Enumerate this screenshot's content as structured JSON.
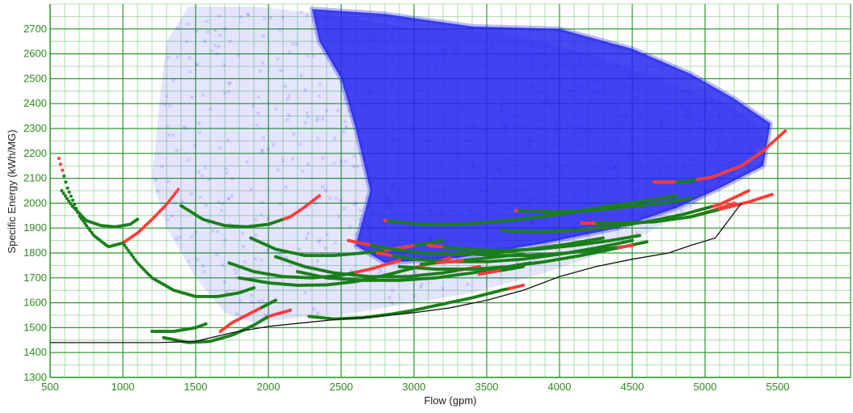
{
  "chart_data": {
    "type": "scatter",
    "title": "",
    "xlabel": "Flow (gpm)",
    "ylabel": "Specific Energy (kWh/MG)",
    "xlim": [
      500,
      6000
    ],
    "ylim": [
      1300,
      2800
    ],
    "x_ticks": [
      500,
      1000,
      1500,
      2000,
      2500,
      3000,
      3500,
      4000,
      4500,
      5000,
      5500
    ],
    "y_ticks": [
      1300,
      1400,
      1500,
      1600,
      1700,
      1800,
      1900,
      2000,
      2100,
      2200,
      2300,
      2400,
      2500,
      2600,
      2700
    ],
    "x_minor_step": 100,
    "y_minor_step": 50,
    "grid": true,
    "colors": {
      "grid_major": "#2e9a2e",
      "grid_minor": "#9bd49b",
      "tick_label": "#2e8b1e",
      "cloud": "#1f1ff0",
      "curve_feasible": "#1a7f1a",
      "curve_infeasible": "#ff3b3b",
      "envelope": "#111111"
    },
    "cloud_outline": [
      [
        1250,
        2400
      ],
      [
        1300,
        2650
      ],
      [
        1450,
        2790
      ],
      [
        1900,
        2790
      ],
      [
        2400,
        2760
      ],
      [
        3000,
        2700
      ],
      [
        3600,
        2690
      ],
      [
        4200,
        2600
      ],
      [
        4600,
        2520
      ],
      [
        4900,
        2450
      ],
      [
        5150,
        2400
      ],
      [
        5350,
        2320
      ],
      [
        5400,
        2250
      ],
      [
        5250,
        2150
      ],
      [
        5050,
        2050
      ],
      [
        4900,
        1980
      ],
      [
        4600,
        1880
      ],
      [
        4300,
        1800
      ],
      [
        3900,
        1720
      ],
      [
        3400,
        1640
      ],
      [
        3000,
        1600
      ],
      [
        2600,
        1560
      ],
      [
        2200,
        1540
      ],
      [
        1900,
        1520
      ],
      [
        1700,
        1560
      ],
      [
        1500,
        1700
      ],
      [
        1300,
        1900
      ],
      [
        1200,
        2100
      ]
    ],
    "cloud_core_outline": [
      [
        2300,
        2780
      ],
      [
        2800,
        2760
      ],
      [
        3400,
        2710
      ],
      [
        4000,
        2700
      ],
      [
        4500,
        2620
      ],
      [
        4900,
        2520
      ],
      [
        5200,
        2420
      ],
      [
        5450,
        2320
      ],
      [
        5400,
        2150
      ],
      [
        5100,
        2060
      ],
      [
        4800,
        1980
      ],
      [
        4400,
        1900
      ],
      [
        3900,
        1840
      ],
      [
        3300,
        1780
      ],
      [
        2800,
        1760
      ],
      [
        2600,
        1830
      ],
      [
        2700,
        2050
      ],
      [
        2600,
        2300
      ],
      [
        2500,
        2500
      ],
      [
        2350,
        2650
      ]
    ],
    "curves": [
      {
        "x": [
          560,
          620,
          700,
          800,
          900,
          1000
        ],
        "y": [
          2180,
          2060,
          1950,
          1870,
          1825,
          1840
        ],
        "infeasible_x": [
          [
            560,
            590
          ]
        ]
      },
      {
        "x": [
          580,
          650,
          750,
          850,
          950,
          1050,
          1100
        ],
        "y": [
          2050,
          1990,
          1930,
          1910,
          1905,
          1915,
          1935
        ],
        "infeasible_x": []
      },
      {
        "x": [
          1000,
          1100,
          1200,
          1300,
          1380
        ],
        "y": [
          1840,
          1880,
          1935,
          1995,
          2055
        ],
        "infeasible_x": [
          [
            1000,
            1380
          ]
        ]
      },
      {
        "x": [
          1000,
          1100,
          1200,
          1350,
          1500,
          1650,
          1800,
          1900
        ],
        "y": [
          1840,
          1760,
          1700,
          1650,
          1625,
          1625,
          1640,
          1660
        ],
        "infeasible_x": []
      },
      {
        "x": [
          1400,
          1550,
          1700,
          1850,
          2000,
          2150,
          2250,
          2350
        ],
        "y": [
          1990,
          1935,
          1910,
          1905,
          1915,
          1945,
          1985,
          2030
        ],
        "infeasible_x": [
          [
            2100,
            2350
          ]
        ]
      },
      {
        "x": [
          1670,
          1750,
          1850,
          1950,
          2050
        ],
        "y": [
          1485,
          1520,
          1550,
          1580,
          1610
        ],
        "infeasible_x": [
          [
            1570,
            1950
          ]
        ]
      },
      {
        "x": [
          1200,
          1350,
          1500,
          1570
        ],
        "y": [
          1485,
          1485,
          1500,
          1515
        ],
        "infeasible_x": []
      },
      {
        "x": [
          1280,
          1450,
          1600,
          1750,
          1900,
          2000,
          2150
        ],
        "y": [
          1460,
          1440,
          1445,
          1470,
          1510,
          1545,
          1570
        ],
        "infeasible_x": [
          [
            2000,
            2150
          ]
        ]
      },
      {
        "x": [
          2280,
          2450,
          2650,
          2850,
          3000,
          3200,
          3400,
          3600,
          3750
        ],
        "y": [
          1545,
          1535,
          1540,
          1555,
          1570,
          1595,
          1620,
          1650,
          1670
        ],
        "infeasible_x": [
          [
            3650,
            3750
          ]
        ]
      },
      {
        "x": [
          1730,
          1900,
          2100,
          2300,
          2500,
          2700,
          2900
        ],
        "y": [
          1760,
          1725,
          1705,
          1700,
          1710,
          1735,
          1770
        ],
        "infeasible_x": [
          [
            2600,
            2900
          ]
        ]
      },
      {
        "x": [
          1880,
          2050,
          2250,
          2450,
          2650,
          2850,
          3000,
          3200
        ],
        "y": [
          1860,
          1815,
          1790,
          1790,
          1800,
          1815,
          1830,
          1850
        ],
        "infeasible_x": [
          [
            2800,
            3000
          ]
        ]
      },
      {
        "x": [
          1800,
          2000,
          2200,
          2400,
          2600,
          2800,
          3000,
          3250
        ],
        "y": [
          1700,
          1680,
          1670,
          1672,
          1685,
          1710,
          1740,
          1780
        ],
        "infeasible_x": [
          [
            3000,
            3250
          ]
        ]
      },
      {
        "x": [
          2050,
          2250,
          2450,
          2700,
          2950,
          3200,
          3450
        ],
        "y": [
          1785,
          1745,
          1720,
          1705,
          1705,
          1720,
          1745
        ],
        "infeasible_x": [
          [
            3300,
            3450
          ]
        ]
      },
      {
        "x": [
          2200,
          2400,
          2650,
          2900,
          3150,
          3400,
          3650,
          3800
        ],
        "y": [
          1725,
          1700,
          1690,
          1690,
          1700,
          1720,
          1745,
          1760
        ],
        "infeasible_x": []
      },
      {
        "x": [
          2550,
          2800,
          3050,
          3300,
          3550,
          3800,
          4050,
          4300
        ],
        "y": [
          1850,
          1820,
          1800,
          1795,
          1800,
          1815,
          1835,
          1860
        ],
        "infeasible_x": [
          [
            2550,
            2700
          ]
        ]
      },
      {
        "x": [
          2750,
          3000,
          3250,
          3500,
          3750,
          4000,
          4250,
          4500
        ],
        "y": [
          1800,
          1775,
          1765,
          1765,
          1775,
          1795,
          1820,
          1850
        ],
        "infeasible_x": [
          [
            2750,
            2850
          ]
        ]
      },
      {
        "x": [
          2900,
          3150,
          3400,
          3650,
          3900,
          4150,
          4400,
          4600
        ],
        "y": [
          1745,
          1735,
          1735,
          1745,
          1765,
          1790,
          1820,
          1845
        ],
        "infeasible_x": []
      },
      {
        "x": [
          3100,
          3350,
          3600,
          3850,
          4100,
          4350,
          4550
        ],
        "y": [
          1830,
          1815,
          1810,
          1815,
          1830,
          1850,
          1870
        ],
        "infeasible_x": [
          [
            3100,
            3200
          ]
        ]
      },
      {
        "x": [
          3300,
          3550,
          3800,
          4050,
          4300,
          4500
        ],
        "y": [
          1800,
          1790,
          1790,
          1800,
          1815,
          1830
        ],
        "infeasible_x": [
          [
            4400,
            4500
          ]
        ]
      },
      {
        "x": [
          2800,
          3050,
          3300,
          3550,
          3800,
          4050,
          4300,
          4550,
          4800
        ],
        "y": [
          1930,
          1915,
          1915,
          1925,
          1940,
          1960,
          1985,
          2005,
          2030
        ],
        "infeasible_x": [
          [
            2800,
            2820
          ]
        ]
      },
      {
        "x": [
          3700,
          3950,
          4200,
          4450,
          4700,
          4900
        ],
        "y": [
          1970,
          1965,
          1970,
          1985,
          2000,
          2020
        ],
        "infeasible_x": [
          [
            3700,
            3720
          ]
        ]
      },
      {
        "x": [
          4150,
          4400,
          4650,
          4900,
          5050,
          5200
        ],
        "y": [
          1920,
          1920,
          1925,
          1945,
          1970,
          2000
        ],
        "infeasible_x": [
          [
            4150,
            4250
          ],
          [
            4900,
            5200
          ]
        ]
      },
      {
        "x": [
          3600,
          3850,
          4100,
          4350,
          4600,
          4850,
          5100,
          5300
        ],
        "y": [
          1890,
          1885,
          1890,
          1905,
          1925,
          1955,
          1995,
          2050
        ],
        "infeasible_x": [
          [
            5050,
            5300
          ]
        ]
      },
      {
        "x": [
          4650,
          4850,
          5050,
          5250,
          5400,
          5550
        ],
        "y": [
          2085,
          2085,
          2105,
          2150,
          2210,
          2290
        ],
        "infeasible_x": [
          [
            4650,
            4800
          ],
          [
            4950,
            5550
          ]
        ]
      },
      {
        "x": [
          4900,
          5100,
          5300,
          5460
        ],
        "y": [
          1945,
          1975,
          2005,
          2035
        ],
        "infeasible_x": [
          [
            5100,
            5460
          ]
        ]
      },
      {
        "x": [
          3450,
          3600,
          3750
        ],
        "y": [
          1715,
          1730,
          1745
        ],
        "infeasible_x": [
          [
            3450,
            3600
          ]
        ]
      },
      {
        "x": [
          3050,
          3250,
          3500,
          3750
        ],
        "y": [
          1755,
          1765,
          1780,
          1795
        ],
        "infeasible_x": [
          [
            3150,
            3350
          ]
        ]
      }
    ],
    "envelope": {
      "x": [
        500,
        1250,
        1500,
        1750,
        2000,
        2250,
        2500,
        2750,
        3000,
        3250,
        3500,
        3750,
        4000,
        4250,
        4500,
        4750,
        4900,
        5070,
        5250
      ],
      "y": [
        1440,
        1440,
        1445,
        1480,
        1505,
        1520,
        1535,
        1545,
        1560,
        1580,
        1610,
        1650,
        1705,
        1745,
        1775,
        1800,
        1830,
        1860,
        2000
      ]
    }
  }
}
